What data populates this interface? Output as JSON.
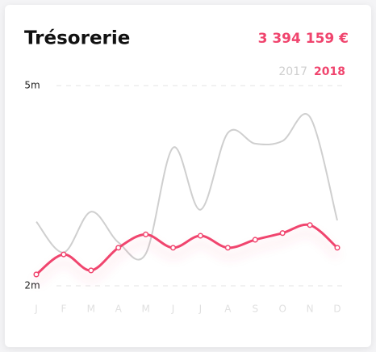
{
  "chart_data": {
    "type": "line",
    "title": "Trésorerie",
    "total": "3 394 159 €",
    "categories": [
      "J",
      "F",
      "M",
      "A",
      "M",
      "J",
      "J",
      "A",
      "S",
      "O",
      "N",
      "D"
    ],
    "series": [
      {
        "name": "2017",
        "color": "#cfcfcf",
        "values": [
          2.96,
          2.5,
          3.11,
          2.65,
          2.48,
          4.07,
          3.14,
          4.29,
          4.13,
          4.17,
          4.53,
          2.98
        ]
      },
      {
        "name": "2018",
        "color": "#f0456e",
        "values": [
          2.17,
          2.47,
          2.23,
          2.57,
          2.77,
          2.57,
          2.75,
          2.57,
          2.69,
          2.79,
          2.91,
          2.57
        ]
      }
    ],
    "ylim": [
      2,
      5
    ],
    "yticks": [
      {
        "value": 2,
        "label": "2m"
      },
      {
        "value": 5,
        "label": "5m"
      }
    ],
    "grid": true
  }
}
